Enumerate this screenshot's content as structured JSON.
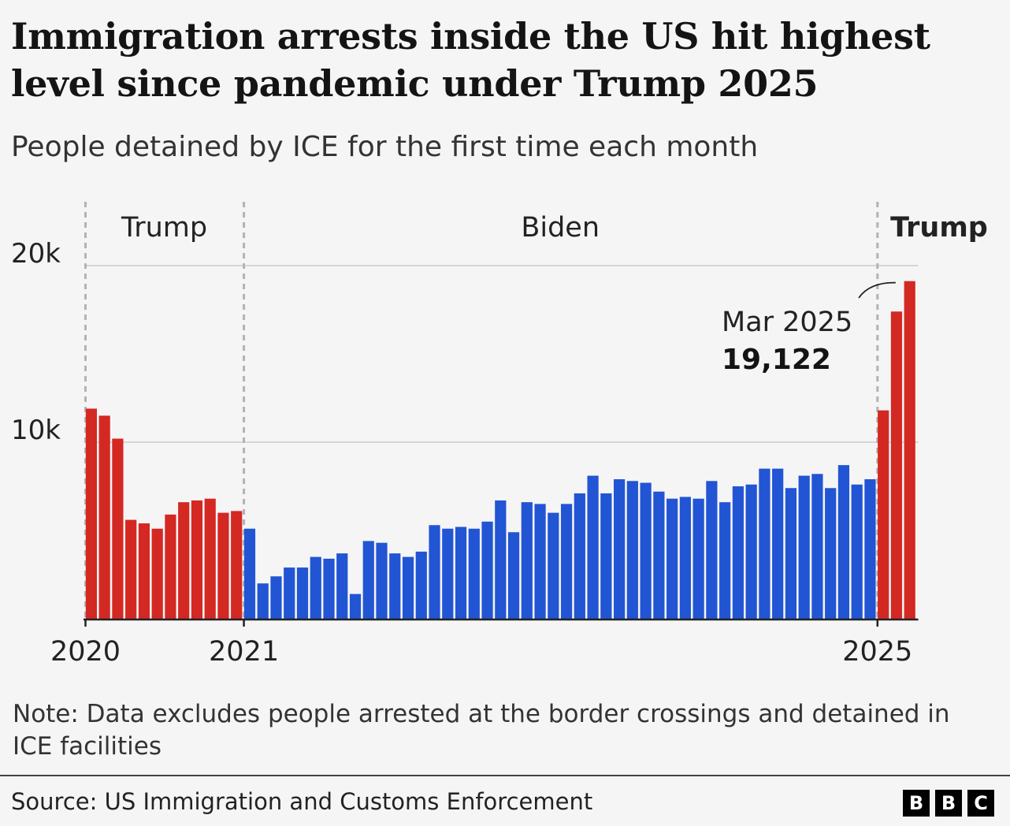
{
  "header": {
    "title": "Immigration arrests inside the US hit highest level since pandemic under Trump 2025",
    "subtitle": "People detained by ICE for the first time each month"
  },
  "footer": {
    "note": "Note: Data excludes people arrested at the border crossings and detained in ICE facilities",
    "source": "Source: US Immigration and Customs Enforcement",
    "logo_letters": [
      "B",
      "B",
      "C"
    ]
  },
  "colors": {
    "trump": "#d42823",
    "biden": "#2255d3",
    "grid": "#cccccc",
    "divider": "#b3b3b3",
    "axis": "#222222"
  },
  "chart_data": {
    "type": "bar",
    "ylim": [
      0,
      20000
    ],
    "y_ticks": [
      {
        "value": 10000,
        "label": "10k"
      },
      {
        "value": 20000,
        "label": "20k"
      }
    ],
    "x_ticks": [
      {
        "index": 0,
        "label": "2020"
      },
      {
        "index": 12,
        "label": "2021"
      },
      {
        "index": 60,
        "label": "2025"
      }
    ],
    "period_dividers": [
      0,
      12,
      60
    ],
    "periods": [
      {
        "label": "Trump",
        "start": 0,
        "end": 12,
        "bold": false
      },
      {
        "label": "Biden",
        "start": 12,
        "end": 60,
        "bold": false
      },
      {
        "label": "Trump",
        "start": 60,
        "end": 63,
        "bold": true
      }
    ],
    "annotation": {
      "index": 62,
      "label": "Mar 2025",
      "value_label": "19,122"
    },
    "grid": true,
    "series": [
      {
        "values": [
          11900,
          11500,
          10200,
          5600,
          5400,
          5100,
          5900,
          6600,
          6700,
          6800,
          6000,
          6100
        ],
        "color_key": "trump",
        "start_index": 0
      },
      {
        "values": [
          5100,
          2000,
          2400,
          2900,
          2900,
          3500,
          3400,
          3700,
          1400,
          4400,
          4300,
          3700,
          3500,
          3800,
          5300,
          5100,
          5200,
          5100,
          5500,
          6700,
          4900,
          6600,
          6500,
          6000,
          6500,
          7100,
          8100,
          7100,
          7900,
          7800,
          7700,
          7200,
          6800,
          6900,
          6800,
          7800,
          6600,
          7500,
          7600,
          8500,
          8500,
          7400,
          8100,
          8200,
          7400,
          8700,
          7600,
          7900
        ],
        "color_key": "biden",
        "start_index": 12
      },
      {
        "values": [
          11800,
          17400,
          19122
        ],
        "color_key": "trump",
        "start_index": 60
      }
    ]
  }
}
